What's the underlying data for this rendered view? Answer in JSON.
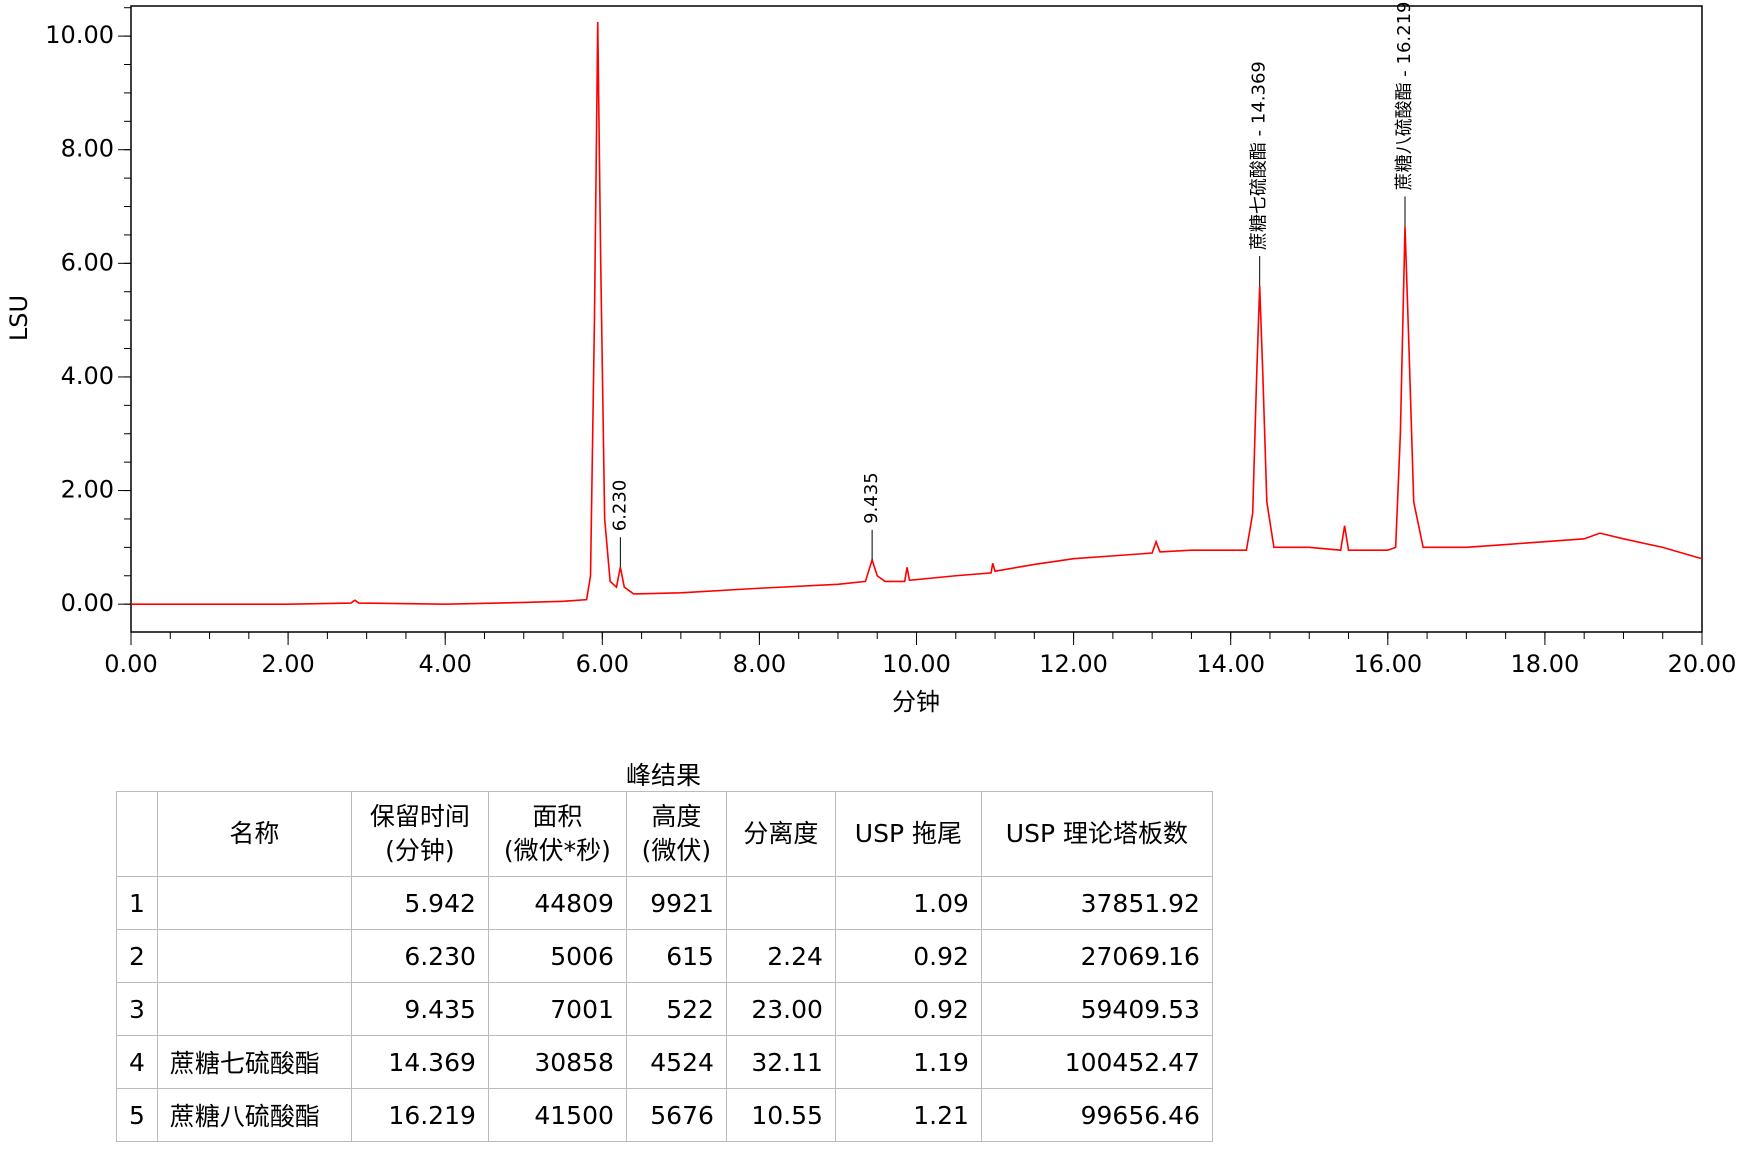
{
  "chart_data": {
    "type": "line",
    "xlabel": "分钟",
    "ylabel": "LSU",
    "color": "#ff0000",
    "xlim": [
      0,
      20
    ],
    "ylim": [
      -0.49,
      10.53
    ],
    "xticks": [
      {
        "value": 0,
        "label": "0.00"
      },
      {
        "value": 2,
        "label": "2.00"
      },
      {
        "value": 4,
        "label": "4.00"
      },
      {
        "value": 6,
        "label": "6.00"
      },
      {
        "value": 8,
        "label": "8.00"
      },
      {
        "value": 10,
        "label": "10.00"
      },
      {
        "value": 12,
        "label": "12.00"
      },
      {
        "value": 14,
        "label": "14.00"
      },
      {
        "value": 16,
        "label": "16.00"
      },
      {
        "value": 18,
        "label": "18.00"
      },
      {
        "value": 20,
        "label": "20.00"
      }
    ],
    "yticks": [
      {
        "value": 0,
        "label": "0.00"
      },
      {
        "value": 2,
        "label": "2.00"
      },
      {
        "value": 4,
        "label": "4.00"
      },
      {
        "value": 6,
        "label": "6.00"
      },
      {
        "value": 8,
        "label": "8.00"
      },
      {
        "value": 10,
        "label": "10.00"
      }
    ],
    "x": [
      0,
      1,
      2,
      2.8,
      2.85,
      2.9,
      4,
      5,
      5.5,
      5.8,
      5.85,
      5.9,
      5.942,
      5.98,
      6.03,
      6.1,
      6.18,
      6.23,
      6.28,
      6.4,
      7,
      8,
      9,
      9.35,
      9.435,
      9.5,
      9.6,
      9.85,
      9.88,
      9.91,
      10.5,
      10.95,
      10.97,
      11,
      11.5,
      12,
      12.5,
      13,
      13.05,
      13.1,
      13.5,
      14,
      14.2,
      14.28,
      14.33,
      14.369,
      14.41,
      14.46,
      14.55,
      15,
      15.4,
      15.45,
      15.5,
      16,
      16.1,
      16.16,
      16.219,
      16.27,
      16.33,
      16.45,
      17,
      17.5,
      18,
      18.5,
      18.7,
      19,
      19.5,
      20
    ],
    "values": [
      0,
      0,
      0,
      0.02,
      0.07,
      0.02,
      0,
      0.03,
      0.05,
      0.08,
      0.5,
      5,
      10.25,
      6,
      1.5,
      0.4,
      0.3,
      0.65,
      0.3,
      0.18,
      0.2,
      0.28,
      0.35,
      0.4,
      0.78,
      0.5,
      0.4,
      0.4,
      0.65,
      0.42,
      0.5,
      0.55,
      0.72,
      0.58,
      0.7,
      0.8,
      0.85,
      0.9,
      1.1,
      0.92,
      0.95,
      0.95,
      0.95,
      1.6,
      4,
      5.6,
      4,
      1.8,
      1,
      1,
      0.95,
      1.38,
      0.95,
      0.95,
      1,
      3,
      6.65,
      4.5,
      1.8,
      1,
      1,
      1.05,
      1.1,
      1.15,
      1.25,
      1.15,
      1,
      0.8
    ],
    "annotations": [
      {
        "text": "6.230",
        "x": 6.23,
        "y": 0.65
      },
      {
        "text": "9.435",
        "x": 9.435,
        "y": 0.78
      },
      {
        "text": "蔗糖七硫酸酯 - 14.369",
        "x": 14.369,
        "y": 5.6
      },
      {
        "text": "蔗糖八硫酸酯 - 16.219",
        "x": 16.219,
        "y": 6.65
      }
    ]
  },
  "table": {
    "title": "峰结果",
    "header": [
      "",
      "名称",
      "保留时间\n(分钟)",
      "面积\n(微伏*秒)",
      "高度\n(微伏)",
      "分离度",
      "USP 拖尾",
      "USP 理论塔板数"
    ],
    "rows": [
      [
        "1",
        "",
        "5.942",
        "44809",
        "9921",
        "",
        "1.09",
        "37851.92"
      ],
      [
        "2",
        "",
        "6.230",
        "5006",
        "615",
        "2.24",
        "0.92",
        "27069.16"
      ],
      [
        "3",
        "",
        "9.435",
        "7001",
        "522",
        "23.00",
        "0.92",
        "59409.53"
      ],
      [
        "4",
        "蔗糖七硫酸酯",
        "14.369",
        "30858",
        "4524",
        "32.11",
        "1.19",
        "100452.47"
      ],
      [
        "5",
        "蔗糖八硫酸酯",
        "16.219",
        "41500",
        "5676",
        "10.55",
        "1.21",
        "99656.46"
      ]
    ]
  }
}
